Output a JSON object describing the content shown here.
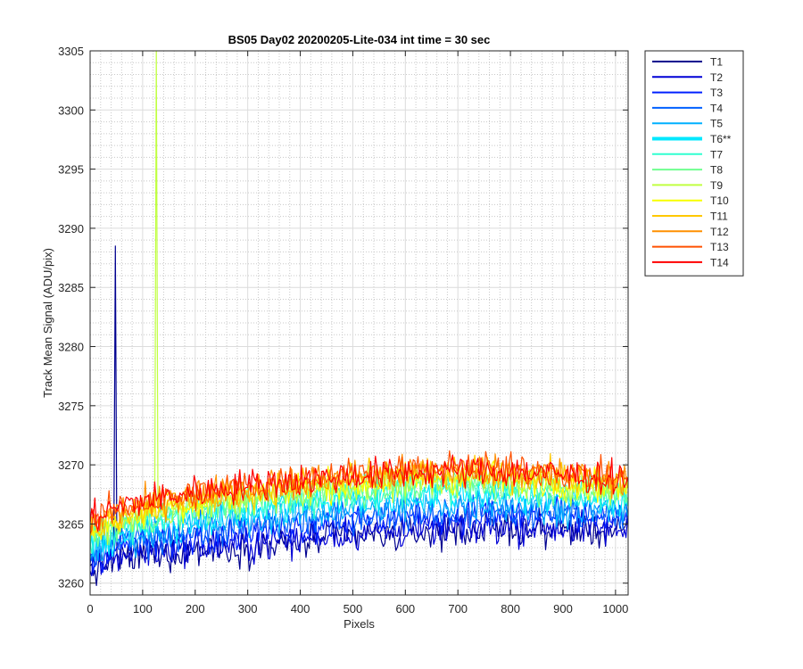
{
  "chart_data": {
    "type": "line",
    "title": "BS05 Day02 20200205-Lite-034 int time = 30 sec",
    "xlabel": "Pixels",
    "ylabel": "Track Mean Signal (ADU/pix)",
    "xlim": [
      0,
      1024
    ],
    "ylim": [
      3259,
      3305
    ],
    "xticks": [
      0,
      100,
      200,
      300,
      400,
      500,
      600,
      700,
      800,
      900,
      1000
    ],
    "yticks": [
      3260,
      3265,
      3270,
      3275,
      3280,
      3285,
      3290,
      3295,
      3300,
      3305
    ],
    "grid": true,
    "minor_grid": true,
    "legend_position": "outside-top-right",
    "x": [
      0,
      50,
      100,
      150,
      200,
      250,
      300,
      350,
      400,
      450,
      500,
      550,
      600,
      650,
      700,
      750,
      800,
      850,
      900,
      950,
      1024
    ],
    "series": [
      {
        "name": "T1",
        "color": "#00008f",
        "values": [
          3261.0,
          3262.0,
          3262.3,
          3262.6,
          3262.8,
          3263.0,
          3263.0,
          3263.2,
          3263.4,
          3263.8,
          3264.0,
          3264.0,
          3264.2,
          3264.3,
          3264.5,
          3264.5,
          3264.6,
          3264.5,
          3264.5,
          3264.4,
          3264.3
        ],
        "spike": {
          "x": 48,
          "y": 3288.5
        }
      },
      {
        "name": "T2",
        "color": "#0000d6",
        "values": [
          3261.3,
          3262.3,
          3262.6,
          3262.9,
          3263.1,
          3263.2,
          3263.3,
          3263.5,
          3263.7,
          3264.0,
          3264.2,
          3264.3,
          3264.4,
          3264.5,
          3264.7,
          3264.7,
          3264.8,
          3264.7,
          3264.7,
          3264.6,
          3264.5
        ]
      },
      {
        "name": "T3",
        "color": "#0020ff",
        "values": [
          3262.0,
          3263.0,
          3263.4,
          3263.7,
          3264.0,
          3264.2,
          3264.4,
          3264.6,
          3264.8,
          3265.0,
          3265.3,
          3265.4,
          3265.5,
          3265.6,
          3265.7,
          3265.8,
          3265.8,
          3265.7,
          3265.6,
          3265.5,
          3265.4
        ]
      },
      {
        "name": "T4",
        "color": "#0060ff",
        "values": [
          3262.3,
          3263.3,
          3263.7,
          3264.0,
          3264.4,
          3264.6,
          3264.8,
          3265.0,
          3265.3,
          3265.5,
          3265.7,
          3265.8,
          3265.9,
          3266.0,
          3266.1,
          3266.1,
          3266.1,
          3266.0,
          3265.9,
          3265.8,
          3265.6
        ]
      },
      {
        "name": "T5",
        "color": "#00b0ff",
        "values": [
          3262.6,
          3263.6,
          3264.1,
          3264.5,
          3264.9,
          3265.2,
          3265.4,
          3265.7,
          3265.9,
          3266.1,
          3266.3,
          3266.4,
          3266.5,
          3266.6,
          3266.7,
          3266.7,
          3266.6,
          3266.5,
          3266.4,
          3266.3,
          3266.1
        ]
      },
      {
        "name": "T6**",
        "color": "#00e8ff",
        "values": [
          3263.0,
          3264.0,
          3264.6,
          3265.0,
          3265.5,
          3265.8,
          3266.1,
          3266.4,
          3266.6,
          3266.9,
          3267.1,
          3267.2,
          3267.4,
          3267.5,
          3267.6,
          3267.6,
          3267.5,
          3267.4,
          3267.3,
          3267.1,
          3266.9
        ]
      },
      {
        "name": "T7",
        "color": "#30ffd0",
        "values": [
          3263.5,
          3264.5,
          3265.1,
          3265.6,
          3266.0,
          3266.3,
          3266.6,
          3266.9,
          3267.1,
          3267.4,
          3267.6,
          3267.7,
          3267.9,
          3268.0,
          3268.1,
          3268.1,
          3268.0,
          3267.9,
          3267.8,
          3267.6,
          3267.4
        ]
      },
      {
        "name": "T8",
        "color": "#70ff90",
        "values": [
          3263.8,
          3264.8,
          3265.4,
          3265.9,
          3266.3,
          3266.6,
          3266.9,
          3267.2,
          3267.4,
          3267.7,
          3267.9,
          3268.0,
          3268.2,
          3268.3,
          3268.4,
          3268.4,
          3268.3,
          3268.2,
          3268.0,
          3267.8,
          3267.6
        ]
      },
      {
        "name": "T9",
        "color": "#c0ff40",
        "values": [
          3264.1,
          3265.1,
          3265.7,
          3266.2,
          3266.6,
          3266.9,
          3267.2,
          3267.5,
          3267.7,
          3268.0,
          3268.2,
          3268.3,
          3268.5,
          3268.6,
          3268.7,
          3268.7,
          3268.6,
          3268.5,
          3268.3,
          3268.1,
          3267.9
        ],
        "spike": {
          "x": 127,
          "y": 3305
        }
      },
      {
        "name": "T10",
        "color": "#f8ff00",
        "values": [
          3264.4,
          3265.4,
          3266.0,
          3266.5,
          3266.9,
          3267.2,
          3267.5,
          3267.8,
          3268.0,
          3268.3,
          3268.5,
          3268.6,
          3268.8,
          3268.9,
          3269.0,
          3269.0,
          3268.9,
          3268.8,
          3268.6,
          3268.4,
          3268.2
        ]
      },
      {
        "name": "T11",
        "color": "#ffc800",
        "values": [
          3264.7,
          3265.7,
          3266.3,
          3266.8,
          3267.2,
          3267.5,
          3267.8,
          3268.1,
          3268.3,
          3268.6,
          3268.8,
          3268.9,
          3269.1,
          3269.2,
          3269.3,
          3269.3,
          3269.2,
          3269.1,
          3268.9,
          3268.7,
          3268.5
        ]
      },
      {
        "name": "T12",
        "color": "#ff9000",
        "values": [
          3265.0,
          3266.0,
          3266.6,
          3267.1,
          3267.5,
          3267.8,
          3268.1,
          3268.4,
          3268.6,
          3268.9,
          3269.1,
          3269.2,
          3269.4,
          3269.5,
          3269.6,
          3269.6,
          3269.5,
          3269.4,
          3269.2,
          3269.0,
          3268.8
        ]
      },
      {
        "name": "T13",
        "color": "#ff5000",
        "values": [
          3265.2,
          3266.2,
          3266.8,
          3267.2,
          3267.6,
          3267.9,
          3268.2,
          3268.5,
          3268.7,
          3269.0,
          3269.2,
          3269.3,
          3269.5,
          3269.6,
          3269.7,
          3269.7,
          3269.6,
          3269.5,
          3269.3,
          3269.1,
          3268.9
        ]
      },
      {
        "name": "T14",
        "color": "#ff0000",
        "values": [
          3265.4,
          3266.4,
          3267.0,
          3267.3,
          3267.7,
          3268.0,
          3268.3,
          3268.5,
          3268.7,
          3268.9,
          3269.1,
          3269.2,
          3269.3,
          3269.4,
          3269.5,
          3269.5,
          3269.4,
          3269.3,
          3269.2,
          3269.0,
          3268.8
        ]
      }
    ]
  }
}
